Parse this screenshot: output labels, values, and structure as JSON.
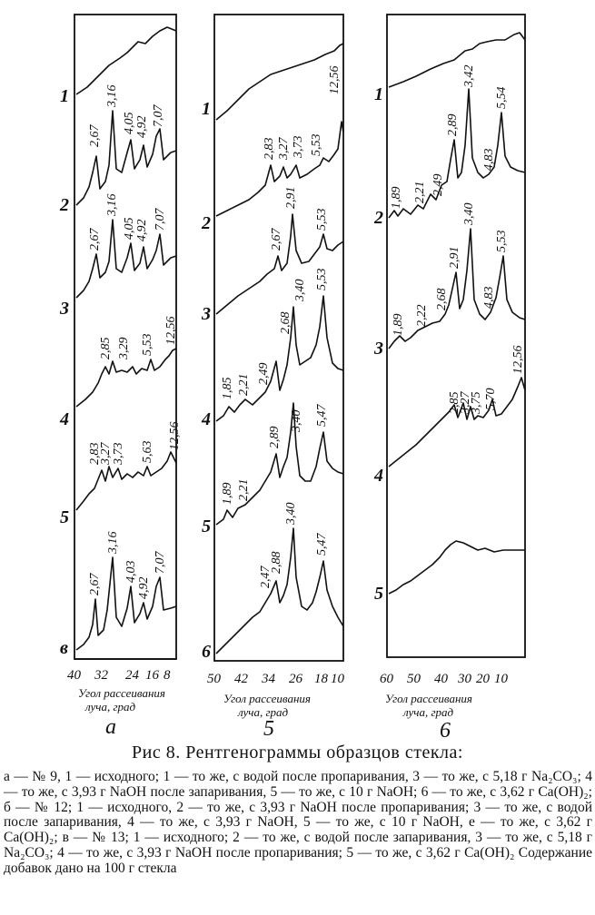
{
  "figure": {
    "caption_title": "Рис 8. Рентгенограммы образцов стекла:",
    "caption_body": "а — № 9, 1 — исходного; 1 — то же, с водой после пропаривания, 3 — то же, с 5,18 г Na₂CO₃; 4 — то же, с 3,93 г NaOH после запаривания, 5 — то же, с 10 г NaOH; 6 — то же, с 3,62 г Ca(OH)₂; б — № 12; 1 — исходного, 2 — то же, с 3,93 г NaOH после пропаривания; 3 — то же, с водой после запаривания, 4 — то же, с 3,93 г NaOH, 5 — то же, с 10 г NaOH, е — то же, с 3,62 г Ca(OH)₂; в — № 13; 1 — исходного; 2 — то же, с водой после запаривания, 3 — то же, с 5,18 г Na₂CO₃; 4 — то же, с 3,93 г NaOH после пропаривания; 5 — то же, с 3,62 г Ca(OH)₂ Содержание добавок дано на 100 г стекла"
  },
  "panels": [
    {
      "label": "а",
      "axis_label_1": "Угол рассеивания",
      "axis_label_2": "луча, град",
      "ticks": [
        "40",
        "32",
        "24",
        "16",
        "8"
      ],
      "curve_labels": [
        "1",
        "2",
        "3",
        "4",
        "5",
        "в"
      ],
      "peak_labels": [
        [
          "2,67",
          "3,16",
          "4,05",
          "4,92",
          "7,07"
        ],
        [
          "2,67",
          "3,16",
          "4,05",
          "4,92",
          "7,07"
        ],
        [
          "2,85",
          "3,29",
          "5,53",
          "12,56"
        ],
        [
          "2,83",
          "3,27",
          "3,73",
          "5,63",
          "12,56"
        ],
        [
          "2,67",
          "3,16",
          "4,03",
          "4,92",
          "7,07"
        ]
      ]
    },
    {
      "label": "5",
      "axis_label_1": "Угол рассеивания",
      "axis_label_2": "луча, град",
      "ticks": [
        "50",
        "42",
        "34",
        "26",
        "18",
        "10"
      ],
      "curve_labels": [
        "1",
        "2",
        "3",
        "4",
        "5",
        "6"
      ],
      "peak_labels": [
        [
          "12,56"
        ],
        [
          "2,83",
          "3,27",
          "3,73",
          "5,53"
        ],
        [
          "2,67",
          "2,91",
          "5,53"
        ],
        [
          "1,85",
          "2,21",
          "2,49",
          "2,68",
          "3,40",
          "5,53"
        ],
        [
          "1,89",
          "2,21",
          "2,89",
          "3,40",
          "5,47"
        ],
        [
          "2,47",
          "2,88",
          "3,40",
          "5,47"
        ]
      ]
    },
    {
      "label": "6",
      "axis_label_1": "Угол рассеивания",
      "axis_label_2": "луча, град",
      "ticks": [
        "60",
        "50",
        "40",
        "30",
        "20",
        "10"
      ],
      "curve_labels": [
        "1",
        "2",
        "3",
        "4",
        "5"
      ],
      "peak_labels": [
        [
          "1,89",
          "2,21",
          "2,49",
          "2,89",
          "3,42",
          "4,83",
          "5,54"
        ],
        [
          "1,89",
          "2,22",
          "2,68",
          "2,91",
          "3,40",
          "4,83",
          "5,53"
        ],
        [
          "2,85",
          "3,27",
          "3,75",
          "5,70",
          "12,56"
        ]
      ]
    }
  ]
}
